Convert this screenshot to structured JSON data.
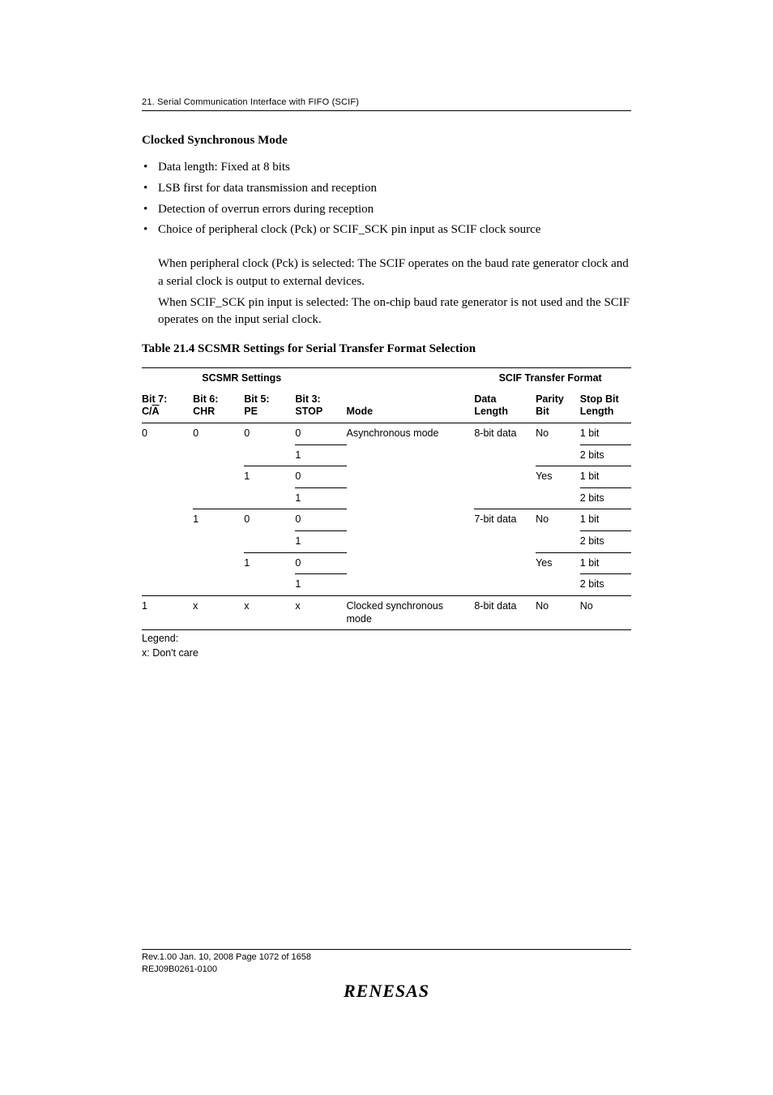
{
  "chapter": "21.   Serial Communication Interface with FIFO (SCIF)",
  "heading": "Clocked Synchronous Mode",
  "bullets": [
    "Data length: Fixed at 8 bits",
    "LSB first for data transmission and reception",
    "Detection of overrun errors during reception",
    "Choice of peripheral clock (Pck) or SCIF_SCK pin input as SCIF clock source"
  ],
  "subparas": [
    "When peripheral clock (Pck) is selected: The SCIF operates on the baud rate generator clock and a serial clock is output to external devices.",
    "When SCIF_SCK pin input is selected: The on-chip baud rate generator is not used and the SCIF operates on the input serial clock."
  ],
  "tableCaption": "Table 21.4   SCSMR Settings for Serial Transfer Format Selection",
  "groupHeaders": {
    "g1": "SCSMR Settings",
    "g2": "SCIF Transfer Format"
  },
  "headers": {
    "h1a": "Bit 7:",
    "h1b_pre": "C/",
    "h1b_ov": "A",
    "h2a": "Bit 6:",
    "h2b": "CHR",
    "h3a": "Bit 5:",
    "h3b": "PE",
    "h4a": "Bit 3:",
    "h4b": "STOP",
    "h5": "Mode",
    "h6a": "Data",
    "h6b": "Length",
    "h7a": "Parity",
    "h7b": "Bit",
    "h8a": "Stop Bit",
    "h8b": "Length"
  },
  "rows": {
    "r1": {
      "b7": "0",
      "b6": "0",
      "b5": "0",
      "b3": "0",
      "mode": "Asynchronous mode",
      "dl": "8-bit data",
      "par": "No",
      "sb": "1 bit"
    },
    "r2": {
      "b3": "1",
      "sb": "2 bits"
    },
    "r3": {
      "b5": "1",
      "b3": "0",
      "par": "Yes",
      "sb": "1 bit"
    },
    "r4": {
      "b3": "1",
      "sb": "2 bits"
    },
    "r5": {
      "b6": "1",
      "b5": "0",
      "b3": "0",
      "dl": "7-bit data",
      "par": "No",
      "sb": "1 bit"
    },
    "r6": {
      "b3": "1",
      "sb": "2 bits"
    },
    "r7": {
      "b5": "1",
      "b3": "0",
      "par": "Yes",
      "sb": "1 bit"
    },
    "r8": {
      "b3": "1",
      "sb": "2 bits"
    },
    "r9": {
      "b7": "1",
      "b6": "x",
      "b5": "x",
      "b3": "x",
      "mode": "Clocked synchronous mode",
      "dl": "8-bit data",
      "par": "No",
      "sb": "No"
    }
  },
  "legend": {
    "l1": "Legend:",
    "l2": "x: Don't care"
  },
  "footer": {
    "rev": "Rev.1.00  Jan. 10, 2008  Page 1072 of 1658",
    "code": "REJ09B0261-0100",
    "logo": "RENESAS"
  },
  "colWidths": [
    "60",
    "60",
    "60",
    "60",
    "150",
    "72",
    "52",
    "60"
  ]
}
